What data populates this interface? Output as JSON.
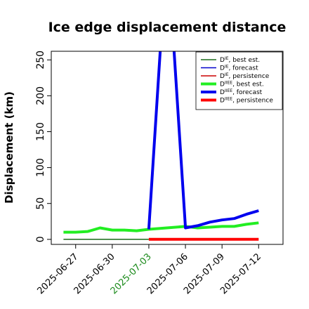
{
  "chart_data": {
    "type": "line",
    "title": "Ice edge displacement distance",
    "ylabel": "Displacement (km)",
    "xlabel": "",
    "ylim": [
      -7,
      262
    ],
    "xlim": [
      "2025-06-25",
      "2025-07-14"
    ],
    "yticks": [
      0,
      50,
      100,
      150,
      200,
      250
    ],
    "xticks": [
      {
        "date": "2025-06-27",
        "label": "2025-06-27",
        "color": "#000000"
      },
      {
        "date": "2025-06-30",
        "label": "2025-06-30",
        "color": "#000000"
      },
      {
        "date": "2025-07-03",
        "label": "2025-07-03",
        "color": "#1a8a1a"
      },
      {
        "date": "2025-07-06",
        "label": "2025-07-06",
        "color": "#000000"
      },
      {
        "date": "2025-07-09",
        "label": "2025-07-09",
        "color": "#000000"
      },
      {
        "date": "2025-07-12",
        "label": "2025-07-12",
        "color": "#000000"
      }
    ],
    "legend_position": "top-right",
    "series": [
      {
        "name": "D^IE, best est.",
        "main": "D",
        "sup": "IE",
        "suffix": ", best est.",
        "color": "#1a6b1a",
        "width": 1.5,
        "points": [
          [
            "2025-06-26",
            0
          ],
          [
            "2025-07-03",
            0
          ]
        ]
      },
      {
        "name": "D^IE, forecast",
        "main": "D",
        "sup": "IE",
        "suffix": ", forecast",
        "color": "#0000cc",
        "width": 1.5,
        "points": []
      },
      {
        "name": "D^IE, persistence",
        "main": "D",
        "sup": "IE",
        "suffix": ", persistence",
        "color": "#cc0000",
        "width": 1.5,
        "points": []
      },
      {
        "name": "D^IIEE, best est.",
        "main": "D",
        "sup": "IIEE",
        "suffix": ", best est.",
        "color": "#22ee22",
        "width": 4,
        "points": [
          [
            "2025-06-26",
            10
          ],
          [
            "2025-06-27",
            10
          ],
          [
            "2025-06-28",
            11
          ],
          [
            "2025-06-29",
            16
          ],
          [
            "2025-06-30",
            13
          ],
          [
            "2025-07-01",
            13
          ],
          [
            "2025-07-02",
            12
          ],
          [
            "2025-07-03",
            14
          ],
          [
            "2025-07-06",
            18
          ],
          [
            "2025-07-07",
            16
          ],
          [
            "2025-07-08",
            17
          ],
          [
            "2025-07-09",
            18
          ],
          [
            "2025-07-10",
            18
          ],
          [
            "2025-07-11",
            21
          ],
          [
            "2025-07-12",
            23
          ]
        ]
      },
      {
        "name": "D^IIEE, forecast",
        "main": "D",
        "sup": "IIEE",
        "suffix": ", forecast",
        "color": "#0000ee",
        "width": 4,
        "points": [
          [
            "2025-07-03",
            14
          ],
          [
            "2025-07-04",
            280
          ],
          [
            "2025-07-05",
            280
          ],
          [
            "2025-07-06",
            16
          ],
          [
            "2025-07-07",
            19
          ],
          [
            "2025-07-08",
            24
          ],
          [
            "2025-07-09",
            27
          ],
          [
            "2025-07-10",
            29
          ],
          [
            "2025-07-11",
            35
          ],
          [
            "2025-07-12",
            40
          ]
        ]
      },
      {
        "name": "D^IIEE, persistence",
        "main": "D",
        "sup": "IIEE",
        "suffix": ", persistence",
        "color": "#ff0000",
        "width": 4,
        "points": [
          [
            "2025-07-03",
            0
          ],
          [
            "2025-07-12",
            0
          ]
        ]
      }
    ]
  }
}
